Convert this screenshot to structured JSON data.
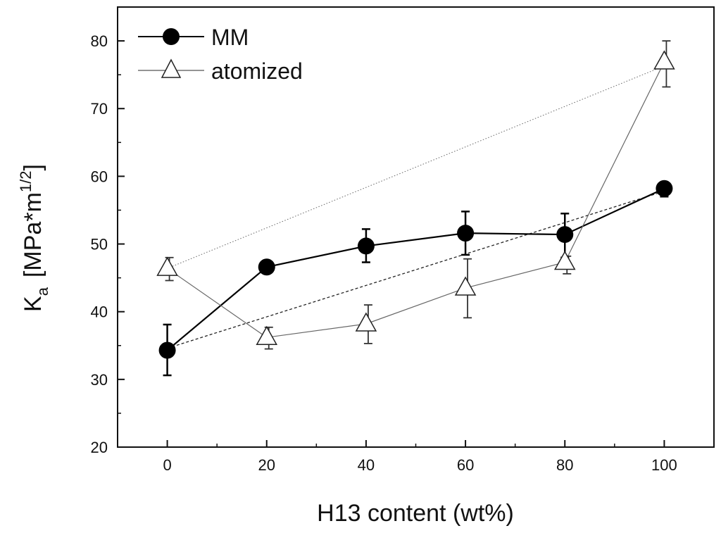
{
  "chart_data": {
    "type": "line",
    "xlabel": "H13 content (wt%)",
    "ylabel": {
      "base": "K",
      "sub": "a",
      "bracket_open": "[",
      "unit": "MPa*m",
      "sup": "1/2",
      "bracket_close": "]"
    },
    "xlim": [
      -10,
      110
    ],
    "ylim": [
      20,
      85
    ],
    "x_ticks": [
      0,
      20,
      40,
      60,
      80,
      100
    ],
    "x_tick_labels": [
      "0",
      "20",
      "40",
      "60",
      "80",
      "100"
    ],
    "x_minor_ticks": [
      10,
      30,
      50,
      70,
      90
    ],
    "y_ticks": [
      20,
      30,
      40,
      50,
      60,
      70,
      80
    ],
    "y_tick_labels": [
      "20",
      "30",
      "40",
      "50",
      "60",
      "70",
      "80"
    ],
    "y_minor_ticks": [
      25,
      35,
      45,
      55,
      65,
      75
    ],
    "grid": false,
    "legend_position": "top-left",
    "series": [
      {
        "name": "MM",
        "marker": "filled-circle",
        "color": "#000000",
        "x": [
          0,
          20,
          40,
          60,
          80,
          100
        ],
        "y": [
          34.3,
          46.6,
          49.7,
          51.6,
          51.4,
          58.2
        ],
        "err_low": [
          30.6,
          46.0,
          47.3,
          48.4,
          48.0,
          57.0
        ],
        "err_high": [
          38.1,
          47.1,
          52.2,
          54.8,
          54.5,
          58.9
        ],
        "trend": {
          "x": [
            0,
            100
          ],
          "y": [
            34.6,
            57.8
          ],
          "style": "dashed"
        }
      },
      {
        "name": "atomized",
        "marker": "open-triangle",
        "color": "#555555",
        "x": [
          0,
          20,
          40,
          60,
          80,
          100
        ],
        "y": [
          46.4,
          36.2,
          38.2,
          43.5,
          47.3,
          76.9
        ],
        "err_low": [
          44.6,
          34.5,
          35.3,
          39.1,
          45.6,
          73.2
        ],
        "err_high": [
          48.0,
          37.7,
          41.0,
          47.8,
          48.2,
          80.0
        ],
        "trend": {
          "x": [
            0,
            100
          ],
          "y": [
            46.4,
            76.3
          ],
          "style": "dotted"
        }
      }
    ]
  }
}
